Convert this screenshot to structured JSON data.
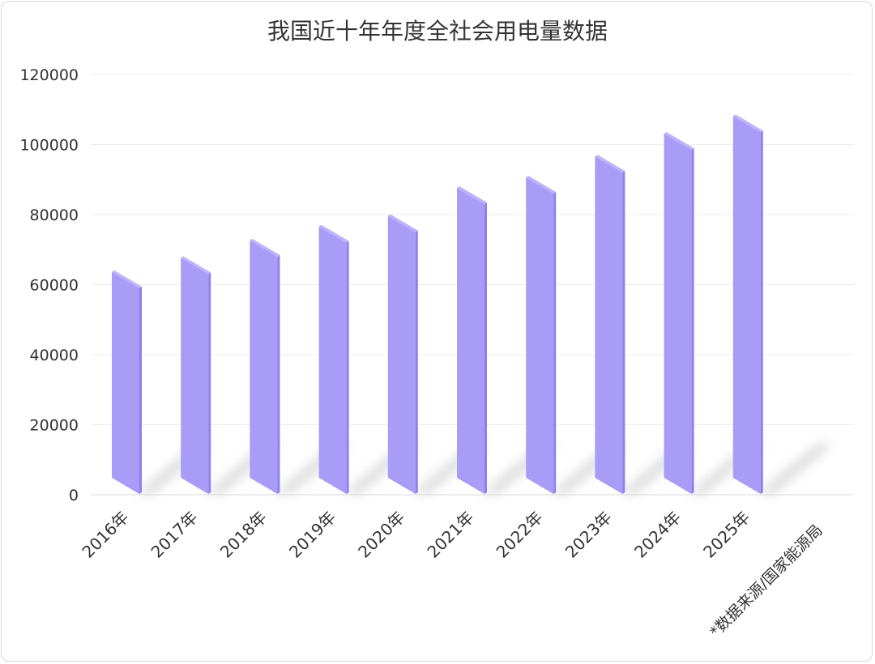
{
  "chart_data": {
    "type": "bar",
    "title": "我国近十年年度全社会用电量数据",
    "categories": [
      "2016年",
      "2017年",
      "2018年",
      "2019年",
      "2020年",
      "2021年",
      "2022年",
      "2023年",
      "2024年",
      "2025年"
    ],
    "values": [
      59000,
      63000,
      68000,
      72000,
      75000,
      83000,
      86000,
      92000,
      98500,
      103500
    ],
    "ylim": [
      0,
      120000
    ],
    "y_ticks": [
      "0",
      "20000",
      "40000",
      "60000",
      "80000",
      "100000",
      "120000"
    ],
    "grid": true,
    "bar_color": "#a99cf7",
    "bar_side_color": "#8f7fef",
    "bar_top_color": "#bdb3fb",
    "note": "*数据来源/国家能源局"
  }
}
